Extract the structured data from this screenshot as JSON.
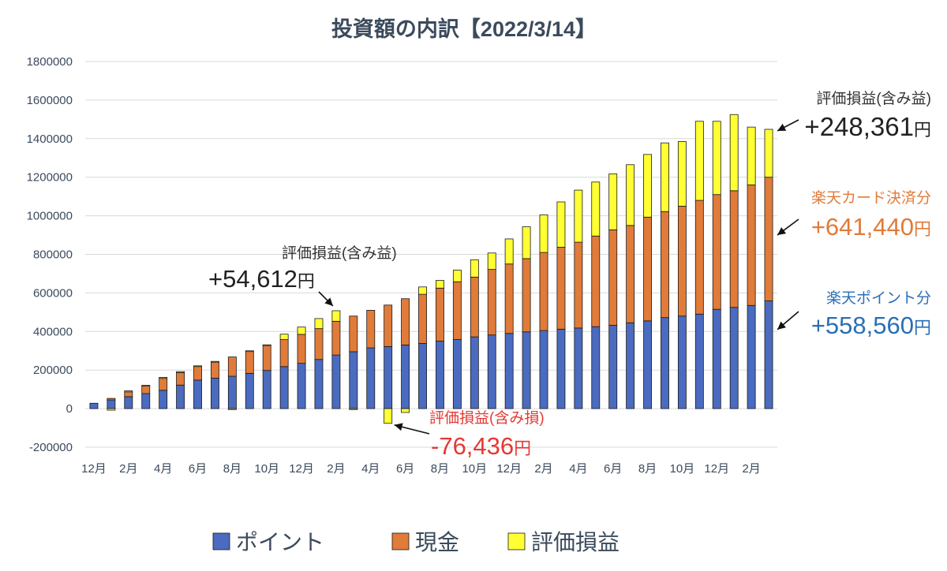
{
  "chart_data": {
    "type": "bar",
    "stacked": true,
    "title": "投資額の内訳【2022/3/14】",
    "ylim": [
      -200000,
      1800000
    ],
    "y_ticks": [
      -200000,
      0,
      200000,
      400000,
      600000,
      800000,
      1000000,
      1200000,
      1400000,
      1600000,
      1800000
    ],
    "grid": true,
    "legend_position": "bottom",
    "x_tick_labels": [
      "12月",
      "2月",
      "4月",
      "6月",
      "8月",
      "10月",
      "12月",
      "2月",
      "4月",
      "6月",
      "8月",
      "10月",
      "12月",
      "2月",
      "4月",
      "6月",
      "8月",
      "10月",
      "12月",
      "2月"
    ],
    "series": [
      {
        "name": "ポイント",
        "color": "#4a6bbf",
        "values": [
          28000,
          45000,
          62000,
          78000,
          95000,
          122000,
          148000,
          158000,
          168000,
          183000,
          198000,
          218000,
          235000,
          255000,
          278000,
          295000,
          315000,
          322000,
          330000,
          338000,
          350000,
          358000,
          372000,
          382000,
          390000,
          398000,
          405000,
          412000,
          418000,
          425000,
          432000,
          445000,
          455000,
          472000,
          480000,
          490000,
          515000,
          525000,
          535000,
          558560
        ]
      },
      {
        "name": "現金",
        "color": "#e07b39",
        "values": [
          0,
          8000,
          25000,
          40000,
          62000,
          65000,
          72000,
          85000,
          100000,
          115000,
          130000,
          140000,
          150000,
          160000,
          175000,
          185000,
          195000,
          215000,
          240000,
          255000,
          275000,
          300000,
          310000,
          340000,
          360000,
          380000,
          405000,
          425000,
          445000,
          470000,
          495000,
          505000,
          538000,
          550000,
          570000,
          590000,
          595000,
          605000,
          625000,
          641440
        ]
      },
      {
        "name": "評価損益",
        "color": "#ffff33",
        "values": [
          0,
          -8000,
          5000,
          3000,
          5000,
          5000,
          2000,
          2000,
          -5000,
          2000,
          3000,
          28000,
          38000,
          52000,
          54612,
          -5000,
          0,
          -76436,
          -20000,
          38000,
          40000,
          60000,
          90000,
          85000,
          130000,
          165000,
          195000,
          235000,
          270000,
          280000,
          290000,
          315000,
          325000,
          356000,
          335000,
          410000,
          380000,
          395000,
          300000,
          248361
        ]
      }
    ],
    "annotations": {
      "gain_early": {
        "label": "評価損益(含み益)",
        "value": "+54,612",
        "unit": "円",
        "color": "#222222"
      },
      "loss": {
        "label": "評価損益(含み損)",
        "value": "-76,436",
        "unit": "円",
        "color": "#e53935"
      },
      "gain_latest": {
        "label": "評価損益(含み益)",
        "value": "+248,361",
        "unit": "円",
        "color": "#222222"
      },
      "card": {
        "label": "楽天カード決済分",
        "value": "+641,440",
        "unit": "円",
        "color": "#e07b39"
      },
      "points": {
        "label": "楽天ポイント分",
        "value": "+558,560",
        "unit": "円",
        "color": "#2a6fb5"
      }
    }
  }
}
